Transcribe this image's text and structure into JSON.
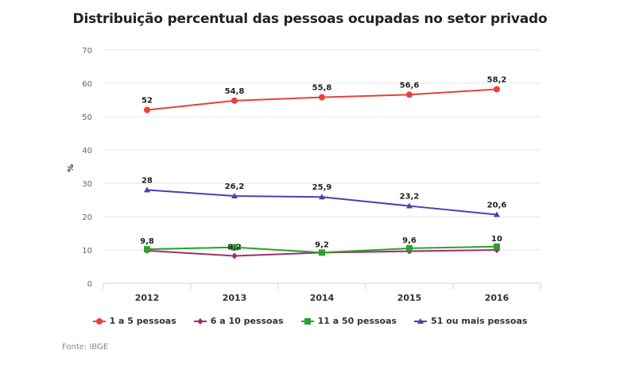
{
  "chart_data": {
    "type": "line",
    "title": "Distribuição percentual das pessoas ocupadas no setor privado",
    "xlabel": "",
    "ylabel": "%",
    "ylim": [
      0,
      70
    ],
    "yticks": [
      0,
      10,
      20,
      30,
      40,
      50,
      60,
      70
    ],
    "grid": true,
    "legend_position": "bottom",
    "categories": [
      "2012",
      "2013",
      "2014",
      "2015",
      "2016"
    ],
    "series": [
      {
        "name": "1 a 5 pessoas",
        "color": "#e8413b",
        "marker": "circle",
        "values": [
          52,
          54.8,
          55.8,
          56.6,
          58.2
        ],
        "labels": [
          "52",
          "54,8",
          "55,8",
          "56,6",
          "58,2"
        ]
      },
      {
        "name": "6 a 10 pessoas",
        "color": "#9c2f6e",
        "marker": "diamond",
        "values": [
          9.8,
          8.2,
          9.2,
          9.6,
          10
        ],
        "labels": [
          "9,8",
          "8,2",
          "9,2",
          "9,6",
          "10"
        ]
      },
      {
        "name": "11 a 50 pessoas",
        "color": "#2ca02c",
        "marker": "square",
        "values": [
          10.2,
          10.8,
          9.2,
          10.5,
          11.0
        ],
        "labels": []
      },
      {
        "name": "51 ou mais pessoas",
        "color": "#4a3fb0",
        "marker": "triangle",
        "values": [
          28,
          26.2,
          25.9,
          23.2,
          20.6
        ],
        "labels": [
          "28",
          "26,2",
          "25,9",
          "23,2",
          "20,6"
        ]
      }
    ]
  },
  "source": "Fonte: IBGE"
}
